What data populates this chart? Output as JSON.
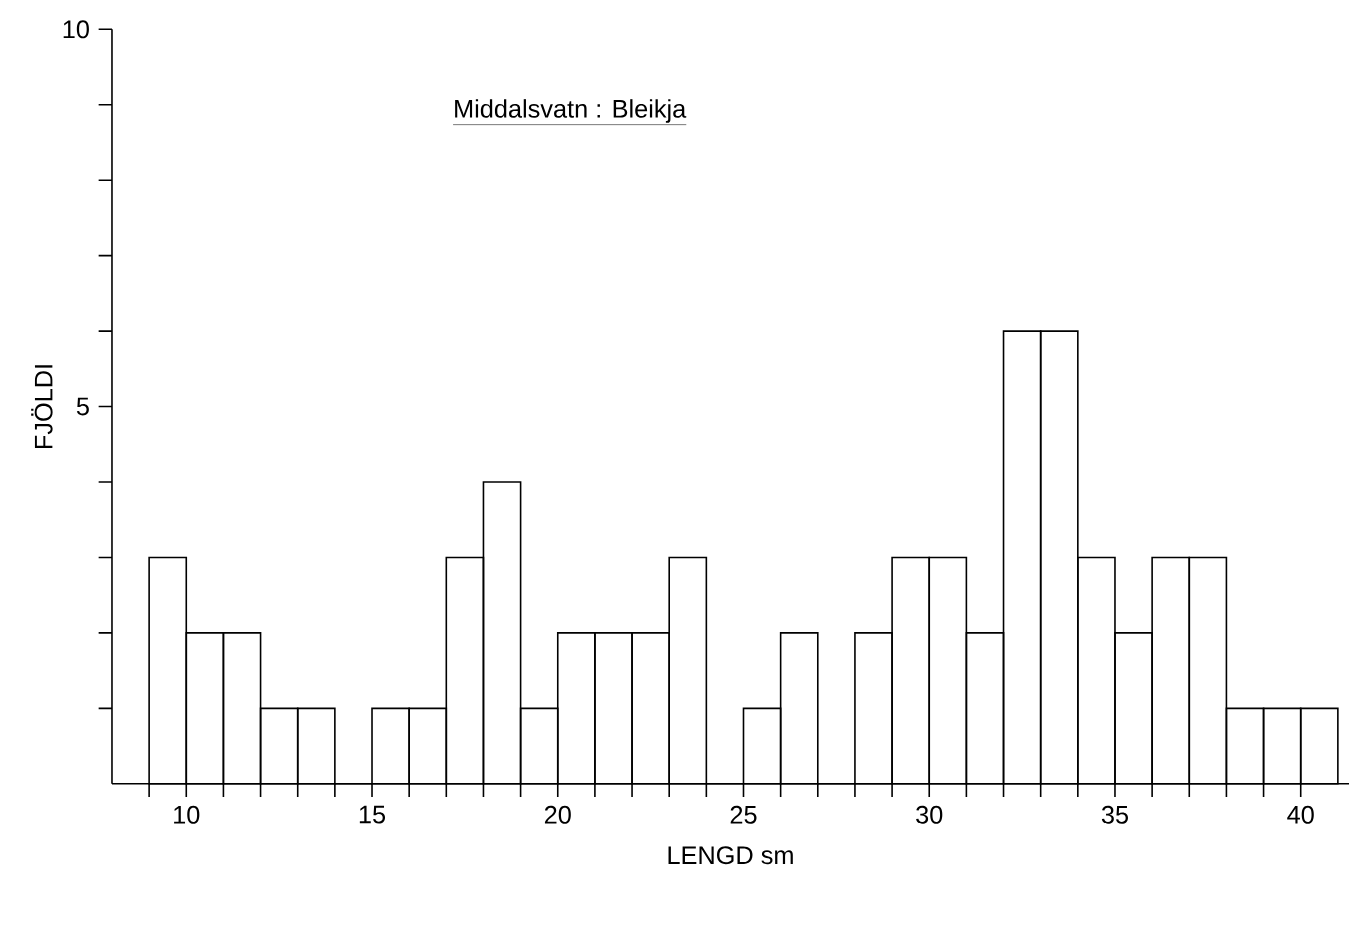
{
  "chart_data": {
    "type": "histogram",
    "title": "Middalsvatn : Bleikja",
    "xlabel": "LENGD  sm",
    "ylabel": "FJÖLDI",
    "bins": [
      9,
      10,
      11,
      12,
      13,
      14,
      15,
      16,
      17,
      18,
      19,
      20,
      21,
      22,
      23,
      24,
      25,
      26,
      27,
      28,
      29,
      30,
      31,
      32,
      33,
      34,
      35,
      36,
      37,
      38,
      39,
      40,
      41
    ],
    "values": [
      3,
      2,
      2,
      1,
      1,
      0,
      1,
      1,
      3,
      4,
      1,
      2,
      2,
      2,
      3,
      0,
      1,
      2,
      0,
      2,
      3,
      3,
      2,
      6,
      6,
      3,
      2,
      3,
      3,
      1,
      1,
      1
    ],
    "color": "#000000",
    "xlim": [
      8,
      41.3
    ],
    "ylim": [
      0,
      10
    ],
    "xticks": [
      {
        "value": 9,
        "label": null
      },
      10,
      {
        "value": 11,
        "label": null
      },
      {
        "value": 12,
        "label": null
      },
      {
        "value": 13,
        "label": null
      },
      {
        "value": 14,
        "label": null
      },
      15,
      {
        "value": 16,
        "label": null
      },
      {
        "value": 17,
        "label": null
      },
      {
        "value": 18,
        "label": null
      },
      {
        "value": 19,
        "label": null
      },
      20,
      {
        "value": 21,
        "label": null
      },
      {
        "value": 22,
        "label": null
      },
      {
        "value": 23,
        "label": null
      },
      {
        "value": 24,
        "label": null
      },
      25,
      {
        "value": 26,
        "label": null
      },
      {
        "value": 27,
        "label": null
      },
      {
        "value": 28,
        "label": null
      },
      {
        "value": 29,
        "label": null
      },
      30,
      {
        "value": 31,
        "label": null
      },
      {
        "value": 32,
        "label": null
      },
      {
        "value": 33,
        "label": null
      },
      {
        "value": 34,
        "label": null
      },
      35,
      {
        "value": 36,
        "label": null
      },
      {
        "value": 37,
        "label": null
      },
      {
        "value": 38,
        "label": null
      },
      {
        "value": 39,
        "label": null
      },
      40
    ],
    "yticks": [
      {
        "value": 1,
        "label": null
      },
      {
        "value": 2,
        "label": null
      },
      {
        "value": 3,
        "label": null
      },
      {
        "value": 4,
        "label": null
      },
      5,
      {
        "value": 6,
        "label": null
      },
      {
        "value": 7,
        "label": null
      },
      {
        "value": 8,
        "label": null
      },
      {
        "value": 9,
        "label": null
      },
      10
    ],
    "grid": false
  }
}
